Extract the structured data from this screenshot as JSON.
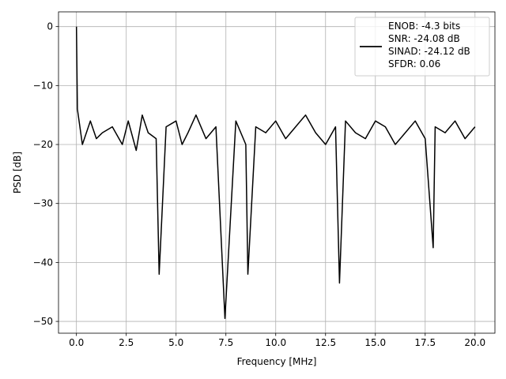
{
  "chart_data": {
    "type": "line",
    "xlabel": "Frequency [MHz]",
    "ylabel": "PSD [dB]",
    "xlim": [
      -0.9,
      21.0
    ],
    "ylim": [
      -52.0,
      2.5
    ],
    "xticks": [
      0.0,
      2.5,
      5.0,
      7.5,
      10.0,
      12.5,
      15.0,
      17.5,
      20.0
    ],
    "xtick_labels": [
      "0.0",
      "2.5",
      "5.0",
      "7.5",
      "10.0",
      "12.5",
      "15.0",
      "17.5",
      "20.0"
    ],
    "yticks": [
      0,
      -10,
      -20,
      -30,
      -40,
      -50
    ],
    "ytick_labels": [
      "0",
      "−10",
      "−20",
      "−30",
      "−40",
      "−50"
    ],
    "grid": true,
    "legend_position": "top-right",
    "line_color": "#000000",
    "legend_entries": [
      "ENOB: -4.3 bits",
      "SNR: -24.08 dB",
      "SINAD: -24.12 dB",
      "SFDR: 0.06"
    ],
    "series": [
      {
        "x": [
          0.0,
          0.05,
          0.3,
          0.7,
          1.0,
          1.3,
          1.8,
          2.3,
          2.6,
          3.0,
          3.3,
          3.6,
          4.0,
          4.15,
          4.5,
          5.0,
          5.3,
          5.6,
          6.0,
          6.5,
          7.0,
          7.45,
          8.0,
          8.5,
          8.6,
          9.0,
          9.5,
          10.0,
          10.5,
          11.0,
          11.5,
          12.0,
          12.5,
          13.0,
          13.2,
          13.5,
          14.0,
          14.5,
          15.0,
          15.5,
          16.0,
          16.5,
          17.0,
          17.5,
          17.9,
          18.0,
          18.5,
          19.0,
          19.5,
          20.0
        ],
        "y": [
          0.0,
          -14.0,
          -20.0,
          -16.0,
          -19.0,
          -18.0,
          -17.0,
          -20.0,
          -16.0,
          -21.0,
          -15.0,
          -18.0,
          -19.0,
          -42.0,
          -17.0,
          -16.0,
          -20.0,
          -18.0,
          -15.0,
          -19.0,
          -17.0,
          -49.5,
          -16.0,
          -20.0,
          -42.0,
          -17.0,
          -18.0,
          -16.0,
          -19.0,
          -17.0,
          -15.0,
          -18.0,
          -20.0,
          -17.0,
          -43.5,
          -16.0,
          -18.0,
          -19.0,
          -16.0,
          -17.0,
          -20.0,
          -18.0,
          -16.0,
          -19.0,
          -37.5,
          -17.0,
          -18.0,
          -16.0,
          -19.0,
          -17.0
        ]
      }
    ]
  }
}
